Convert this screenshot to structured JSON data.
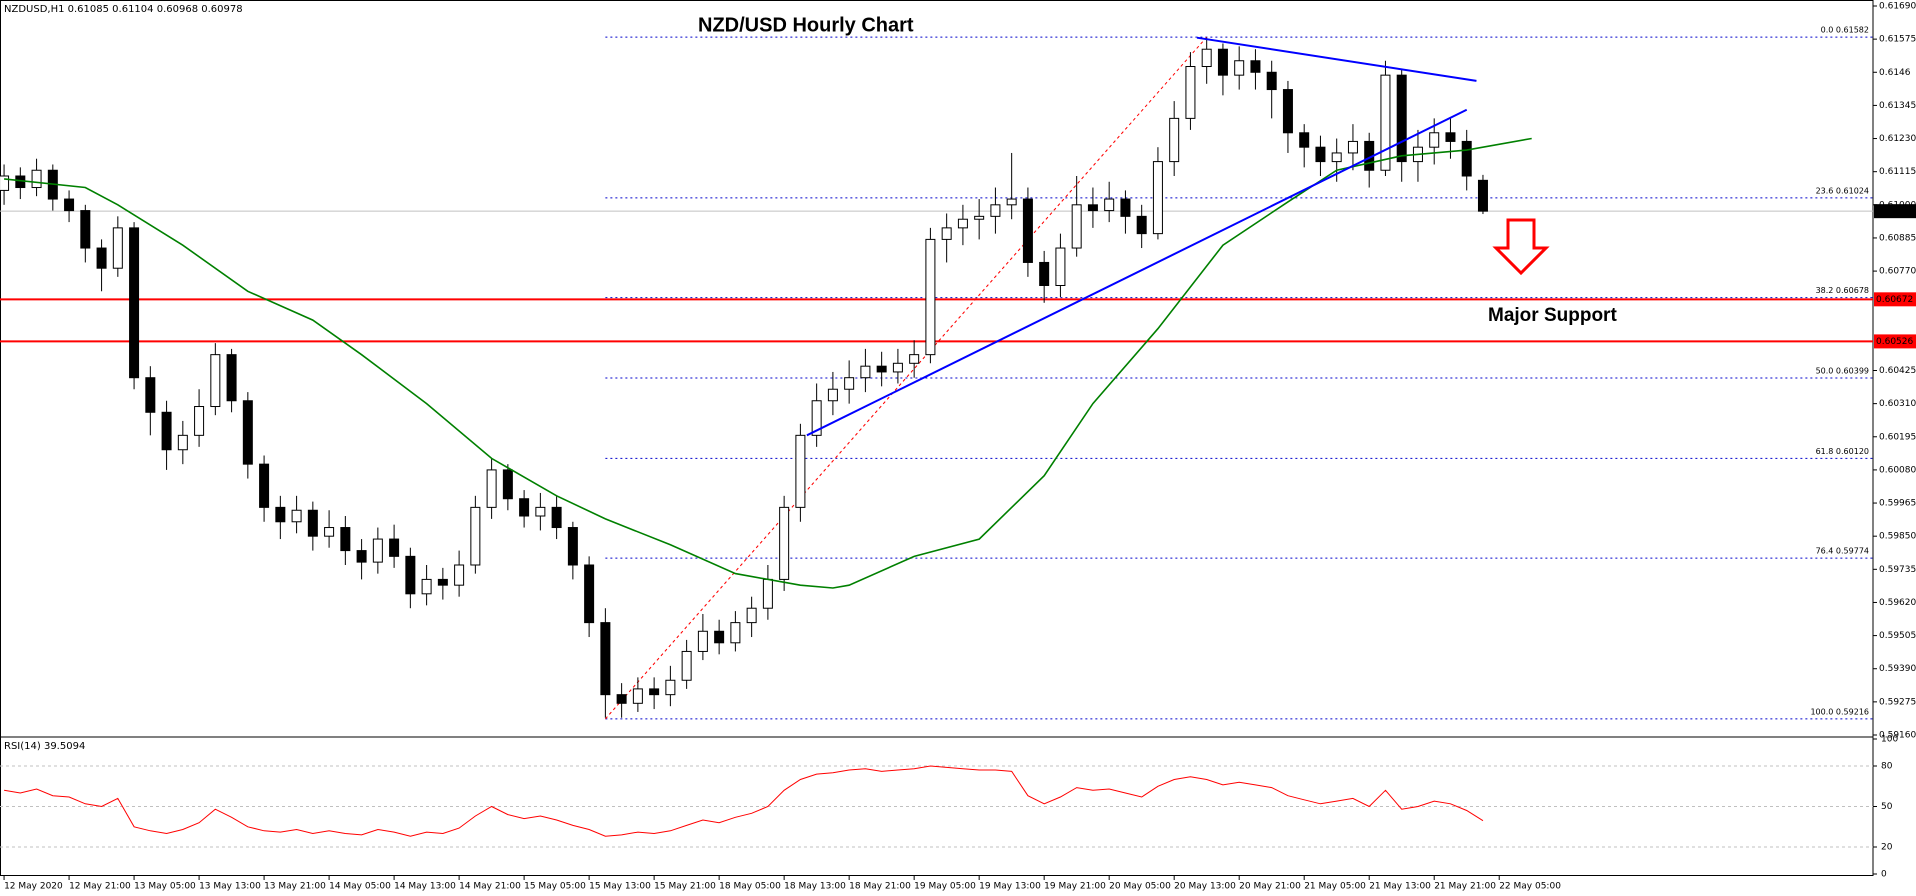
{
  "chart_data": [
    {
      "type": "candlestick",
      "title": "NZD/USD Hourly Chart",
      "header": "NZDUSD,H1  0.61085 0.61104 0.60968 0.60978",
      "support_label": "Major Support",
      "support_color": "#ff0000",
      "up_color": "#ffffff",
      "down_color": "#000000",
      "xlim": [
        -0.25,
        115
      ],
      "ylim": [
        0.5916,
        0.6169
      ],
      "yticks": [
        {
          "value": 0.6169,
          "label": "0.61690"
        },
        0.61575,
        0.6146,
        0.61345,
        {
          "value": 0.6123,
          "label": "0.61230"
        },
        0.61115,
        {
          "value": 0.61,
          "label": "0.61000"
        },
        0.60885,
        {
          "value": 0.6077,
          "label": "0.60770"
        },
        0.60425,
        {
          "value": 0.6031,
          "label": "0.60310"
        },
        0.60195,
        {
          "value": 0.6008,
          "label": "0.60080"
        },
        0.59965,
        {
          "value": 0.5985,
          "label": "0.59850"
        },
        0.59735,
        {
          "value": 0.5962,
          "label": "0.59620"
        },
        0.59505,
        {
          "value": 0.5939,
          "label": "0.59390"
        },
        0.59275,
        {
          "value": 0.5916,
          "label": "0.59160"
        }
      ],
      "xticks": [
        {
          "value": 0,
          "label": "12 May 2020"
        },
        {
          "value": 4,
          "label": "12 May 21:00"
        },
        {
          "value": 8,
          "label": "13 May 05:00"
        },
        {
          "value": 12,
          "label": "13 May 13:00"
        },
        {
          "value": 16,
          "label": "13 May 21:00"
        },
        {
          "value": 20,
          "label": "14 May 05:00"
        },
        {
          "value": 24,
          "label": "14 May 13:00"
        },
        {
          "value": 28,
          "label": "14 May 21:00"
        },
        {
          "value": 32,
          "label": "15 May 05:00"
        },
        {
          "value": 36,
          "label": "15 May 13:00"
        },
        {
          "value": 40,
          "label": "15 May 21:00"
        },
        {
          "value": 44,
          "label": "18 May 05:00"
        },
        {
          "value": 48,
          "label": "18 May 13:00"
        },
        {
          "value": 52,
          "label": "18 May 21:00"
        },
        {
          "value": 56,
          "label": "19 May 05:00"
        },
        {
          "value": 60,
          "label": "19 May 13:00"
        },
        {
          "value": 64,
          "label": "19 May 21:00"
        },
        {
          "value": 68,
          "label": "20 May 05:00"
        },
        {
          "value": 72,
          "label": "20 May 13:00"
        },
        {
          "value": 76,
          "label": "20 May 21:00"
        },
        {
          "value": 80,
          "label": "21 May 05:00"
        },
        {
          "value": 84,
          "label": "21 May 13:00"
        },
        {
          "value": 88,
          "label": "21 May 21:00"
        },
        {
          "value": 92,
          "label": "22 May 05:00"
        }
      ],
      "candles": {
        "open": [
          0.6105,
          0.611,
          0.6106,
          0.6112,
          0.6102,
          0.6098,
          0.6085,
          0.6078,
          0.6092,
          0.604,
          0.6028,
          0.6015,
          0.602,
          0.603,
          0.6048,
          0.6032,
          0.601,
          0.5995,
          0.599,
          0.5994,
          0.5985,
          0.5988,
          0.598,
          0.5976,
          0.5984,
          0.5978,
          0.5965,
          0.597,
          0.5968,
          0.5975,
          0.5995,
          0.6008,
          0.5998,
          0.5992,
          0.5995,
          0.5988,
          0.5975,
          0.5955,
          0.593,
          0.5927,
          0.5932,
          0.593,
          0.5935,
          0.5945,
          0.5952,
          0.5948,
          0.5955,
          0.596,
          0.597,
          0.5995,
          0.602,
          0.6032,
          0.6036,
          0.604,
          0.6044,
          0.6042,
          0.6045,
          0.6048,
          0.6088,
          0.6092,
          0.6095,
          0.6096,
          0.61,
          0.6102,
          0.608,
          0.6072,
          0.6085,
          0.61,
          0.6098,
          0.6102,
          0.6096,
          0.609,
          0.6115,
          0.613,
          0.6148,
          0.6154,
          0.6145,
          0.615,
          0.6146,
          0.614,
          0.6125,
          0.612,
          0.6115,
          0.6118,
          0.6122,
          0.6112,
          0.6145,
          0.6115,
          0.612,
          0.6125,
          0.6122,
          0.61085
        ],
        "high": [
          0.6114,
          0.6113,
          0.6116,
          0.6114,
          0.6105,
          0.61,
          0.6088,
          0.6096,
          0.6094,
          0.6044,
          0.6032,
          0.6025,
          0.6036,
          0.6052,
          0.605,
          0.6035,
          0.6013,
          0.5999,
          0.5999,
          0.5997,
          0.5994,
          0.5992,
          0.5984,
          0.5988,
          0.5989,
          0.5981,
          0.5975,
          0.5974,
          0.598,
          0.5999,
          0.6012,
          0.601,
          0.6001,
          0.6,
          0.5999,
          0.599,
          0.5978,
          0.596,
          0.5934,
          0.5936,
          0.5936,
          0.594,
          0.5949,
          0.5958,
          0.5956,
          0.5959,
          0.5964,
          0.5975,
          0.5999,
          0.6024,
          0.6038,
          0.6042,
          0.6046,
          0.605,
          0.6049,
          0.605,
          0.6053,
          0.6092,
          0.6097,
          0.61,
          0.6102,
          0.6106,
          0.6118,
          0.6106,
          0.6084,
          0.609,
          0.611,
          0.6106,
          0.6108,
          0.6105,
          0.61,
          0.612,
          0.6136,
          0.6153,
          0.6158,
          0.6156,
          0.6155,
          0.6154,
          0.615,
          0.6143,
          0.6128,
          0.6124,
          0.6123,
          0.6128,
          0.6125,
          0.615,
          0.6147,
          0.6126,
          0.613,
          0.613,
          0.6126,
          0.61104
        ],
        "low": [
          0.61,
          0.6102,
          0.6103,
          0.6098,
          0.6094,
          0.608,
          0.607,
          0.6075,
          0.6036,
          0.602,
          0.6008,
          0.601,
          0.6016,
          0.6027,
          0.6028,
          0.6005,
          0.599,
          0.5984,
          0.5986,
          0.598,
          0.5981,
          0.5975,
          0.597,
          0.5972,
          0.5974,
          0.596,
          0.5961,
          0.5963,
          0.5964,
          0.5972,
          0.5991,
          0.5994,
          0.5988,
          0.5987,
          0.5984,
          0.597,
          0.595,
          0.5922,
          0.5922,
          0.5924,
          0.5925,
          0.5926,
          0.5932,
          0.5942,
          0.5944,
          0.5945,
          0.595,
          0.5956,
          0.5966,
          0.599,
          0.6016,
          0.6027,
          0.6031,
          0.6035,
          0.6037,
          0.6038,
          0.604,
          0.6045,
          0.608,
          0.6086,
          0.6088,
          0.609,
          0.6095,
          0.6075,
          0.6066,
          0.6068,
          0.6082,
          0.6092,
          0.6094,
          0.609,
          0.6085,
          0.6088,
          0.611,
          0.6126,
          0.6142,
          0.6138,
          0.614,
          0.614,
          0.613,
          0.6118,
          0.6113,
          0.611,
          0.6108,
          0.6112,
          0.6106,
          0.611,
          0.6108,
          0.6108,
          0.6114,
          0.6116,
          0.6105,
          0.60968
        ],
        "close": [
          0.611,
          0.6106,
          0.6112,
          0.6102,
          0.6098,
          0.6085,
          0.6078,
          0.6092,
          0.604,
          0.6028,
          0.6015,
          0.602,
          0.603,
          0.6048,
          0.6032,
          0.601,
          0.5995,
          0.599,
          0.5994,
          0.5985,
          0.5988,
          0.598,
          0.5976,
          0.5984,
          0.5978,
          0.5965,
          0.597,
          0.5968,
          0.5975,
          0.5995,
          0.6008,
          0.5998,
          0.5992,
          0.5995,
          0.5988,
          0.5975,
          0.5955,
          0.593,
          0.5927,
          0.5932,
          0.593,
          0.5935,
          0.5945,
          0.5952,
          0.5948,
          0.5955,
          0.596,
          0.597,
          0.5995,
          0.602,
          0.6032,
          0.6036,
          0.604,
          0.6044,
          0.6042,
          0.6045,
          0.6048,
          0.6088,
          0.6092,
          0.6095,
          0.6096,
          0.61,
          0.6102,
          0.608,
          0.6072,
          0.6085,
          0.61,
          0.6098,
          0.6102,
          0.6096,
          0.609,
          0.6115,
          0.613,
          0.6148,
          0.6154,
          0.6145,
          0.615,
          0.6146,
          0.614,
          0.6125,
          0.612,
          0.6115,
          0.6118,
          0.6122,
          0.6112,
          0.6145,
          0.6115,
          0.612,
          0.6125,
          0.6122,
          0.611,
          0.60978
        ]
      },
      "ma": {
        "color": "#008000",
        "x": [
          0,
          5,
          7,
          11,
          15,
          19,
          22,
          26,
          30,
          34,
          37,
          41,
          45,
          49,
          51,
          52,
          56,
          60,
          64,
          67,
          71,
          75,
          79,
          82,
          86,
          90,
          94
        ],
        "values": [
          0.6109,
          0.6106,
          0.61,
          0.6086,
          0.607,
          0.606,
          0.6048,
          0.6031,
          0.6012,
          0.5999,
          0.5991,
          0.5982,
          0.5972,
          0.5968,
          0.5967,
          0.5968,
          0.5978,
          0.5984,
          0.6006,
          0.6031,
          0.6057,
          0.6086,
          0.6101,
          0.6112,
          0.6117,
          0.6119,
          0.6123
        ]
      },
      "trendlines": {
        "color": "#0000ff",
        "lines": [
          {
            "x": [
              73.4,
              90.6
            ],
            "y": [
              0.6158,
              0.6143
            ]
          },
          {
            "x": [
              49.4,
              90
            ],
            "y": [
              0.602,
              0.6133
            ]
          }
        ]
      },
      "fib": {
        "x": [
          37,
          74
        ],
        "color": "#0000cc",
        "diagonal_color": "#ff0000",
        "levels": [
          {
            "label": "0.0 0.61582",
            "value": 0.61582
          },
          {
            "label": "23.6 0.61024",
            "value": 0.61024
          },
          {
            "label": "38.2 0.60678",
            "value": 0.60678
          },
          {
            "label": "50.0 0.60399",
            "value": 0.60399
          },
          {
            "label": "61.8 0.60120",
            "value": 0.6012
          },
          {
            "label": "76.4 0.59774",
            "value": 0.59774
          },
          {
            "label": "100.0 0.59216",
            "value": 0.59216
          }
        ]
      },
      "price_lines": [
        {
          "value": 0.60672,
          "color": "#ff0000",
          "line_color": "#ff0000"
        },
        {
          "value": 0.60526,
          "color": "#ff0000",
          "line_color": "#ff0000"
        },
        {
          "value": 0.60978,
          "color": "#000000",
          "line_color": "#c0c0c0"
        }
      ]
    },
    {
      "type": "line",
      "title": "RSI(14) 39.5094",
      "color": "#ff0000",
      "ylim": [
        0,
        100
      ],
      "yticks": [
        0,
        20,
        50,
        80,
        100
      ],
      "grid": true,
      "values": [
        62,
        60,
        63,
        58,
        57,
        52,
        50,
        56,
        35,
        32,
        30,
        33,
        38,
        48,
        42,
        35,
        32,
        31,
        33,
        30,
        32,
        30,
        29,
        33,
        31,
        28,
        31,
        30,
        34,
        43,
        50,
        44,
        41,
        43,
        40,
        36,
        33,
        28,
        29,
        31,
        30,
        32,
        36,
        40,
        38,
        42,
        45,
        50,
        62,
        70,
        74,
        75,
        77,
        78,
        76,
        77,
        78,
        80,
        79,
        78,
        77,
        77,
        76,
        58,
        52,
        57,
        64,
        62,
        63,
        60,
        57,
        65,
        70,
        72,
        70,
        66,
        68,
        66,
        64,
        58,
        55,
        52,
        54,
        56,
        50,
        62,
        48,
        50,
        54,
        52,
        47,
        39.5094
      ]
    }
  ]
}
